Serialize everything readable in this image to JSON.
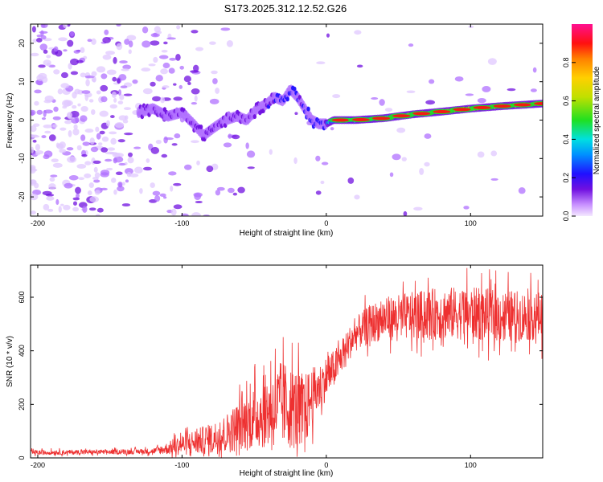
{
  "figure": {
    "title": "S173.2025.312.12.52.G26"
  },
  "colors": {
    "snr_line": "#ee3030",
    "axis": "#000000",
    "colormap": [
      "#e0c8ff",
      "#b070ff",
      "#7010e0",
      "#2010ff",
      "#0090ff",
      "#00e0e0",
      "#20e020",
      "#c0e000",
      "#ffd000",
      "#ff8000",
      "#ff1010",
      "#ff0080"
    ]
  },
  "chart_data": [
    {
      "type": "heatmap",
      "title": "",
      "xlabel": "Height of straight line (km)",
      "ylabel": "Frequency (Hz)",
      "xlim": [
        -205,
        150
      ],
      "ylim": [
        -25,
        25
      ],
      "xticks": [
        -200,
        -100,
        0,
        100
      ],
      "xtick_labels": [
        "-200",
        "-100",
        "0",
        "100"
      ],
      "yticks": [
        -20,
        -10,
        0,
        10,
        20
      ],
      "ytick_labels": [
        "-20",
        "-10",
        "0",
        "10",
        "20"
      ],
      "colorbar": {
        "label": "Normalized spectral amplitude",
        "range": [
          0,
          1
        ],
        "ticks": [
          0,
          0.2,
          0.4,
          0.6,
          0.8
        ],
        "tick_labels": [
          "0.0",
          "0.2",
          "0.4",
          "0.6",
          "0.8"
        ]
      },
      "ridge": {
        "description_points_x": [
          -130,
          -120,
          -110,
          -100,
          -92,
          -85,
          -78,
          -70,
          -62,
          -55,
          -48,
          -42,
          -36,
          -30,
          -25,
          -20,
          -15,
          -10,
          -5,
          0,
          5,
          10,
          20,
          40,
          60,
          80,
          100,
          120,
          150
        ],
        "frequency_hz": [
          2,
          3,
          1,
          2,
          -1,
          -4,
          -2,
          0,
          1,
          0,
          3,
          4,
          6,
          5,
          8,
          6,
          3,
          0,
          -1,
          -1,
          0,
          0,
          0,
          0.5,
          1.5,
          2.2,
          3,
          3.6,
          4.3
        ]
      }
    },
    {
      "type": "line",
      "title": "",
      "xlabel": "Height of straight line (km)",
      "ylabel": "SNR (10 * v/v)",
      "xlim": [
        -205,
        150
      ],
      "ylim": [
        0,
        720
      ],
      "xticks": [
        -200,
        -100,
        0,
        100
      ],
      "xtick_labels": [
        "-200",
        "-100",
        "0",
        "100"
      ],
      "yticks": [
        0,
        200,
        400,
        600
      ],
      "ytick_labels": [
        "0",
        "200",
        "400",
        "600"
      ],
      "series": [
        {
          "name": "SNR",
          "trend_x": [
            -205,
            -150,
            -120,
            -110,
            -100,
            -90,
            -80,
            -70,
            -60,
            -50,
            -40,
            -30,
            -20,
            -15,
            -10,
            -5,
            0,
            5,
            10,
            15,
            20,
            30,
            40,
            60,
            80,
            100,
            120,
            150
          ],
          "trend_y": [
            20,
            22,
            25,
            35,
            50,
            60,
            70,
            90,
            120,
            150,
            180,
            200,
            180,
            170,
            230,
            260,
            300,
            330,
            370,
            420,
            460,
            500,
            520,
            530,
            540,
            540,
            530,
            530
          ],
          "spread_y": [
            10,
            10,
            12,
            25,
            45,
            55,
            65,
            80,
            110,
            130,
            160,
            180,
            170,
            160,
            120,
            100,
            90,
            80,
            70,
            70,
            70,
            80,
            90,
            100,
            110,
            110,
            110,
            100
          ]
        }
      ]
    }
  ]
}
